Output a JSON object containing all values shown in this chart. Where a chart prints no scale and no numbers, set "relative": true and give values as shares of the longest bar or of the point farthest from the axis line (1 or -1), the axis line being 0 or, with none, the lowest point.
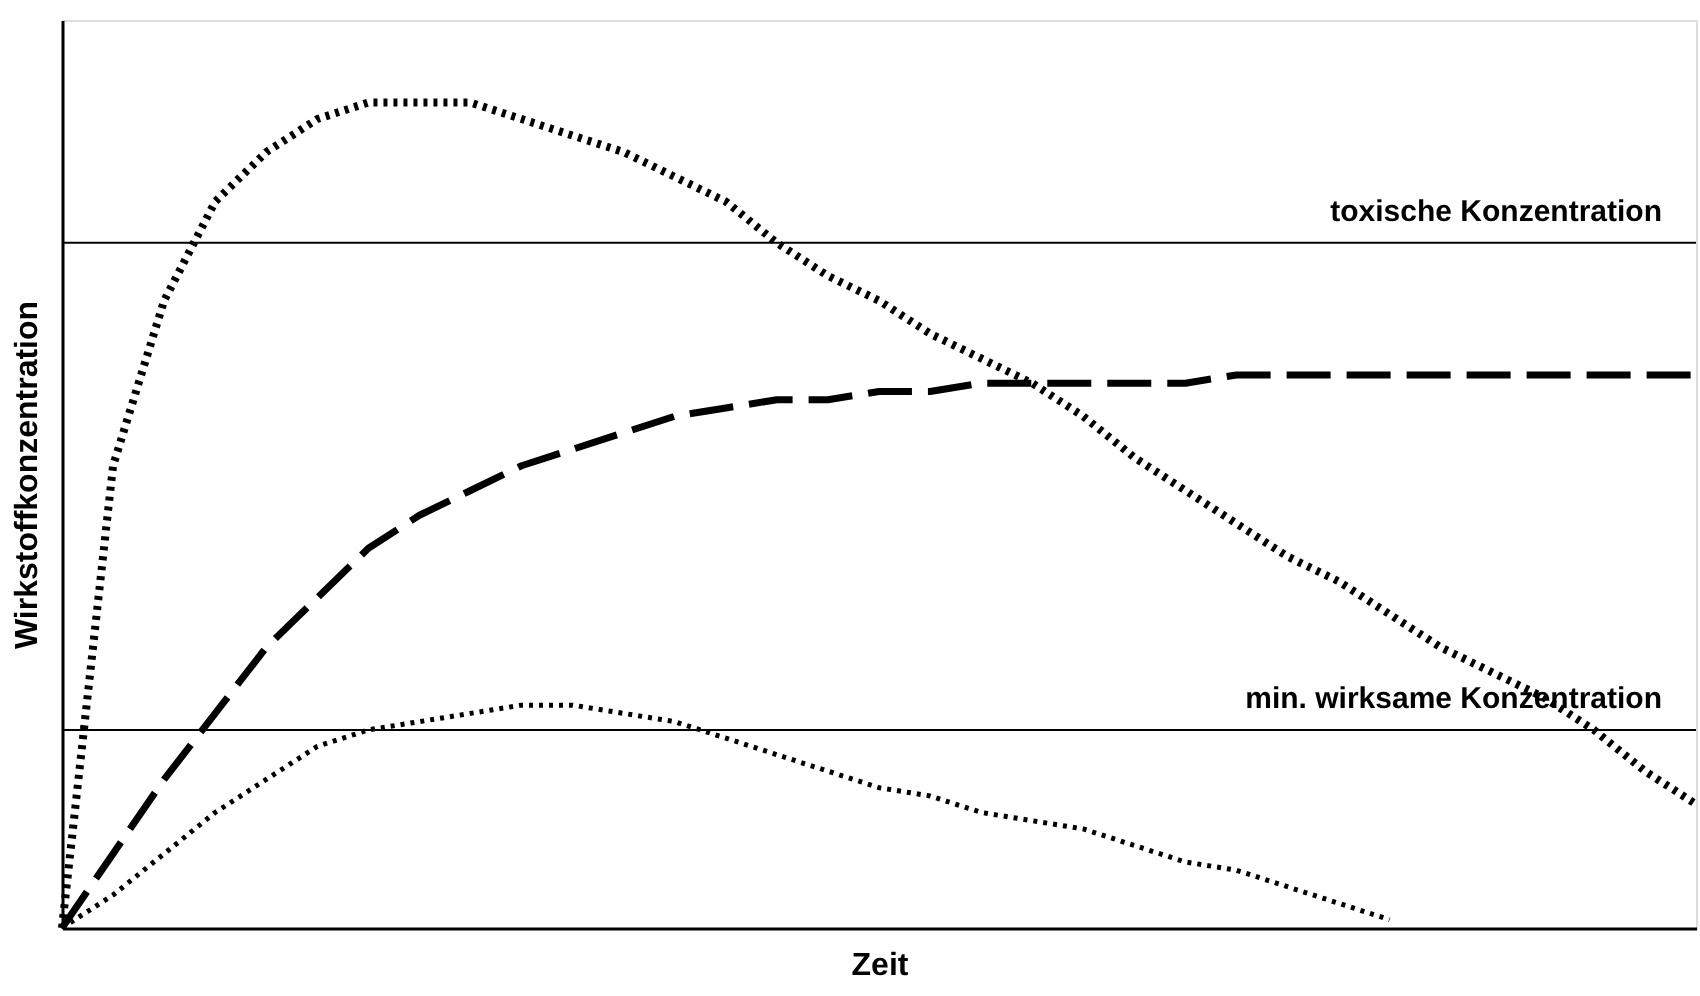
{
  "chart_data": {
    "type": "line",
    "relative": true,
    "xlabel": "Zeit",
    "ylabel": "Wirkstoffkonzentration",
    "tick_labels": false,
    "grid": false,
    "marker": "none",
    "categories": [
      null,
      null,
      null,
      null,
      null,
      null,
      null,
      null,
      null,
      null,
      null,
      null,
      null,
      null,
      null,
      null,
      null,
      null,
      null,
      null,
      null,
      null,
      null,
      null,
      null,
      null,
      null,
      null,
      null,
      null,
      null,
      null,
      null
    ],
    "series": [
      {
        "color": "#000000",
        "line_style": "dotted",
        "values": [
          0,
          0.56,
          0.76,
          0.88,
          0.94,
          0.98,
          1.0,
          1.0,
          1.0,
          0.98,
          0.96,
          0.94,
          0.91,
          0.88,
          0.83,
          0.79,
          0.76,
          0.72,
          0.69,
          0.66,
          0.62,
          0.57,
          0.53,
          0.49,
          0.45,
          0.42,
          0.38,
          0.34,
          0.31,
          0.28,
          0.24,
          0.19,
          0.15
        ]
      },
      {
        "color": "#000000",
        "line_style": "dashed",
        "values": [
          0,
          0.09,
          0.18,
          0.26,
          0.34,
          0.4,
          0.46,
          0.5,
          0.53,
          0.56,
          0.58,
          0.6,
          0.62,
          0.63,
          0.64,
          0.64,
          0.65,
          0.65,
          0.66,
          0.66,
          0.66,
          0.66,
          0.66,
          0.67,
          0.67,
          0.67,
          0.67,
          0.67,
          0.67,
          0.67,
          0.67,
          0.67,
          0.67
        ]
      },
      {
        "color": "#000000",
        "line_style": "dotted",
        "values": [
          0,
          0.04,
          0.09,
          0.14,
          0.18,
          0.22,
          0.24,
          0.25,
          0.26,
          0.27,
          0.27,
          0.26,
          0.25,
          0.23,
          0.21,
          0.19,
          0.17,
          0.16,
          0.14,
          0.13,
          0.12,
          0.1,
          0.08,
          0.07,
          0.05,
          0.03,
          0.01,
          null,
          null,
          null,
          null,
          null,
          null
        ]
      }
    ],
    "ref_lines": [
      {
        "axis": "y",
        "value": 0.83,
        "label": "toxische Konzentration",
        "color": "#000000",
        "line_style": "solid"
      },
      {
        "axis": "y",
        "value": 0.24,
        "label": "min. wirksame Konzentration",
        "color": "#000000",
        "line_style": "solid"
      }
    ]
  }
}
